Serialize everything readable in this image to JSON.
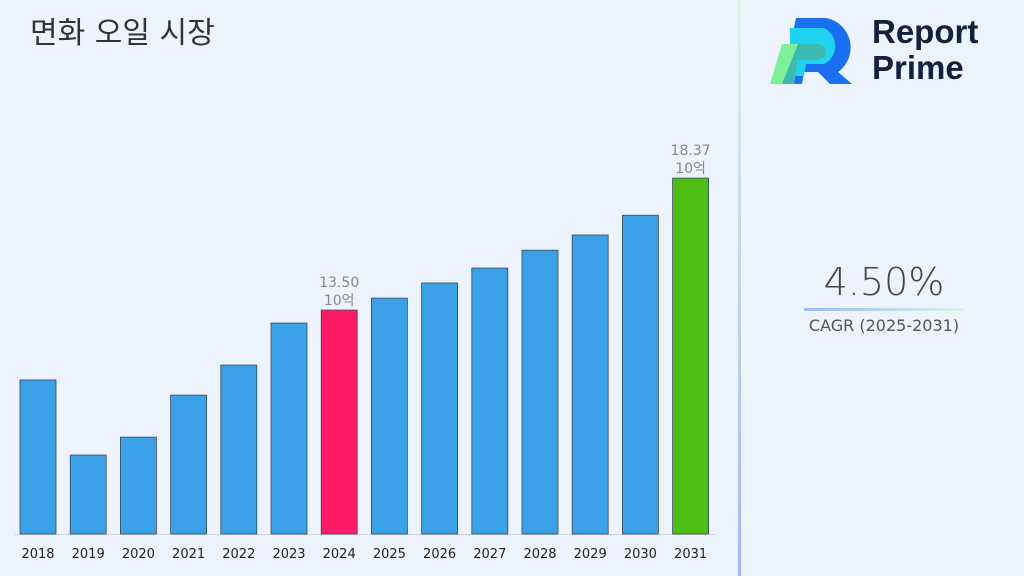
{
  "title": "면화 오일 시장",
  "brand": {
    "line1": "Report",
    "line2": "Prime"
  },
  "cagr": {
    "value": "4.50%",
    "label": "CAGR (2025-2031)"
  },
  "colors": {
    "default": "#3aa0e8",
    "highlight_2024": "#ff1a66",
    "highlight_2031": "#4cbe14"
  },
  "chart_data": {
    "type": "bar",
    "title": "면화 오일 시장",
    "xlabel": "",
    "ylabel": "",
    "unit": "10억",
    "categories": [
      "2018",
      "2019",
      "2020",
      "2021",
      "2022",
      "2023",
      "2024",
      "2025",
      "2026",
      "2027",
      "2028",
      "2029",
      "2030",
      "2031"
    ],
    "values": [
      10.92,
      8.15,
      8.81,
      10.36,
      11.47,
      13.02,
      13.5,
      13.94,
      14.5,
      15.05,
      15.71,
      16.27,
      17.0,
      18.37
    ],
    "data_labels": [
      {
        "category": "2024",
        "value": "13.50",
        "unit": "10억"
      },
      {
        "category": "2031",
        "value": "18.37",
        "unit": "10억"
      }
    ],
    "grid": false,
    "y_axis_visible": false
  }
}
